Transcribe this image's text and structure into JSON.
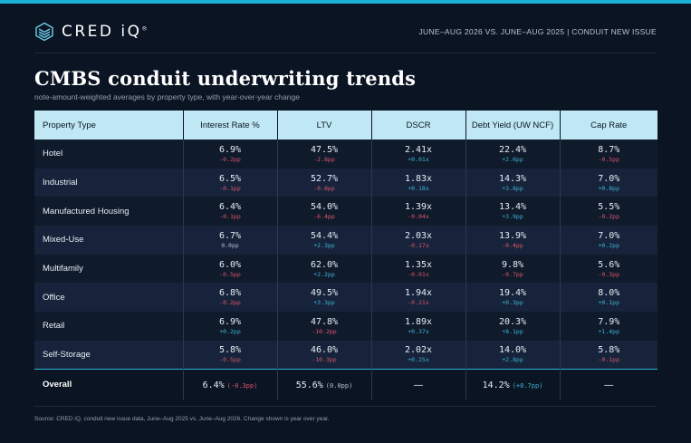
{
  "header": {
    "brand": "CRED iQ",
    "trademark": "®",
    "meta": "JUNE–AUG 2026 VS. JUNE–AUG 2025 | CONDUIT NEW ISSUE",
    "logo_icon": "stacked-chevron-logo-icon"
  },
  "title": "CMBS conduit underwriting trends",
  "subtitle": "note-amount-weighted averages by property type, with year-over-year change",
  "table": {
    "columns": [
      "Property Type",
      "Interest Rate %",
      "LTV",
      "DSCR",
      "Debt Yield (UW NCF)",
      "Cap Rate"
    ],
    "rows": [
      {
        "type": "Hotel",
        "cells": [
          {
            "v": "6.9%",
            "c": "-0.2pp",
            "d": "neg"
          },
          {
            "v": "47.5%",
            "c": "-2.8pp",
            "d": "neg"
          },
          {
            "v": "2.41x",
            "c": "+0.01x",
            "d": "pos"
          },
          {
            "v": "22.4%",
            "c": "+2.6pp",
            "d": "pos"
          },
          {
            "v": "8.7%",
            "c": "-0.5pp",
            "d": "neg"
          }
        ]
      },
      {
        "type": "Industrial",
        "cells": [
          {
            "v": "6.5%",
            "c": "-0.1pp",
            "d": "neg"
          },
          {
            "v": "52.7%",
            "c": "-0.8pp",
            "d": "neg"
          },
          {
            "v": "1.83x",
            "c": "+0.18x",
            "d": "pos"
          },
          {
            "v": "14.3%",
            "c": "+3.8pp",
            "d": "pos"
          },
          {
            "v": "7.0%",
            "c": "+0.8pp",
            "d": "pos"
          }
        ]
      },
      {
        "type": "Manufactured Housing",
        "cells": [
          {
            "v": "6.4%",
            "c": "-0.1pp",
            "d": "neg"
          },
          {
            "v": "54.0%",
            "c": "-6.4pp",
            "d": "neg"
          },
          {
            "v": "1.39x",
            "c": "-0.04x",
            "d": "neg"
          },
          {
            "v": "13.4%",
            "c": "+3.9pp",
            "d": "pos"
          },
          {
            "v": "5.5%",
            "c": "-0.2pp",
            "d": "neg"
          }
        ]
      },
      {
        "type": "Mixed-Use",
        "cells": [
          {
            "v": "6.7%",
            "c": "0.0pp",
            "d": "neu"
          },
          {
            "v": "54.4%",
            "c": "+2.3pp",
            "d": "pos"
          },
          {
            "v": "2.03x",
            "c": "-0.17x",
            "d": "neg"
          },
          {
            "v": "13.9%",
            "c": "-0.4pp",
            "d": "neg"
          },
          {
            "v": "7.0%",
            "c": "+0.2pp",
            "d": "pos"
          }
        ]
      },
      {
        "type": "Multifamily",
        "cells": [
          {
            "v": "6.0%",
            "c": "-0.5pp",
            "d": "neg"
          },
          {
            "v": "62.0%",
            "c": "+2.2pp",
            "d": "pos"
          },
          {
            "v": "1.35x",
            "c": "-0.01x",
            "d": "neg"
          },
          {
            "v": "9.8%",
            "c": "-0.7pp",
            "d": "neg"
          },
          {
            "v": "5.6%",
            "c": "-0.3pp",
            "d": "neg"
          }
        ]
      },
      {
        "type": "Office",
        "cells": [
          {
            "v": "6.8%",
            "c": "-0.2pp",
            "d": "neg"
          },
          {
            "v": "49.5%",
            "c": "+3.3pp",
            "d": "pos"
          },
          {
            "v": "1.94x",
            "c": "-0.21x",
            "d": "neg"
          },
          {
            "v": "19.4%",
            "c": "+0.3pp",
            "d": "pos"
          },
          {
            "v": "8.0%",
            "c": "+0.1pp",
            "d": "pos"
          }
        ]
      },
      {
        "type": "Retail",
        "cells": [
          {
            "v": "6.9%",
            "c": "+0.2pp",
            "d": "pos"
          },
          {
            "v": "47.8%",
            "c": "-10.2pp",
            "d": "neg"
          },
          {
            "v": "1.89x",
            "c": "+0.37x",
            "d": "pos"
          },
          {
            "v": "20.3%",
            "c": "+8.1pp",
            "d": "pos"
          },
          {
            "v": "7.9%",
            "c": "+1.4pp",
            "d": "pos"
          }
        ]
      },
      {
        "type": "Self-Storage",
        "cells": [
          {
            "v": "5.8%",
            "c": "-0.5pp",
            "d": "neg"
          },
          {
            "v": "46.0%",
            "c": "-10.3pp",
            "d": "neg"
          },
          {
            "v": "2.02x",
            "c": "+0.25x",
            "d": "pos"
          },
          {
            "v": "14.0%",
            "c": "+2.8pp",
            "d": "pos"
          },
          {
            "v": "5.8%",
            "c": "-0.1pp",
            "d": "neg"
          }
        ]
      }
    ],
    "overall": {
      "label": "Overall",
      "cells": [
        {
          "v": "6.4%",
          "c": "(-0.3pp)",
          "d": "neg"
        },
        {
          "v": "55.6%",
          "c": "(0.0pp)",
          "d": "neu"
        },
        {
          "v": "—",
          "c": "",
          "d": ""
        },
        {
          "v": "14.2%",
          "c": "(+0.7pp)",
          "d": "pos"
        },
        {
          "v": "—",
          "c": "",
          "d": ""
        }
      ]
    }
  },
  "colors": {
    "negative": "#e0566a",
    "positive": "#3eb6d6",
    "neutral": "#b8c4d2",
    "accent": "#1bb0d6",
    "header_fill": "#bfe8f4"
  },
  "footnote": "Source: CRED iQ, conduit new issue data, June–Aug 2025 vs. June–Aug 2026. Change shown is year over year."
}
